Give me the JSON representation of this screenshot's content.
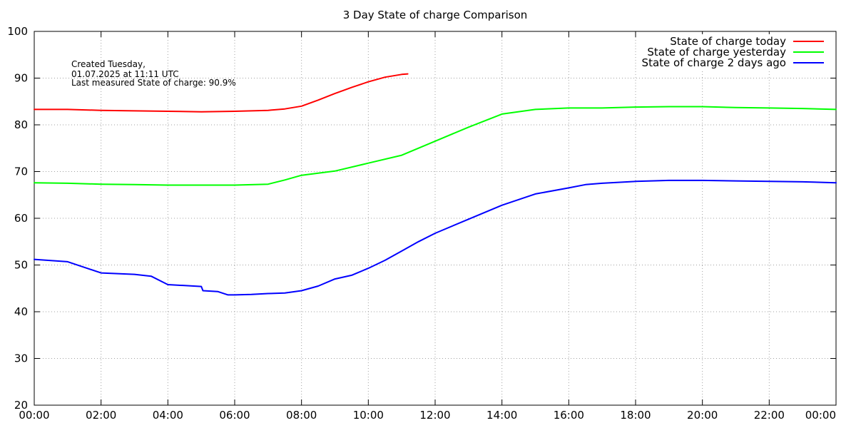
{
  "chart_data": {
    "type": "line",
    "title": "3 Day State of charge Comparison",
    "xlabel": "",
    "ylabel": "",
    "xlim": [
      0,
      24
    ],
    "ylim": [
      20,
      100
    ],
    "x_tick_values": [
      0,
      2,
      4,
      6,
      8,
      10,
      12,
      14,
      16,
      18,
      20,
      22,
      24
    ],
    "x_ticks": [
      "00:00",
      "02:00",
      "04:00",
      "06:00",
      "08:00",
      "10:00",
      "12:00",
      "14:00",
      "16:00",
      "18:00",
      "20:00",
      "22:00",
      "00:00"
    ],
    "y_ticks": [
      20,
      30,
      40,
      50,
      60,
      70,
      80,
      90,
      100
    ],
    "grid": true,
    "legend_position": "top-right",
    "annotation": {
      "line1": "Created Tuesday,",
      "line2": "01.07.2025 at 11:11 UTC",
      "line3": "Last measured State of charge: 90.9%"
    },
    "series": [
      {
        "name": "State of charge today",
        "color": "#ff0000",
        "points": [
          [
            0,
            83.3
          ],
          [
            1,
            83.3
          ],
          [
            2,
            83.1
          ],
          [
            3,
            83.0
          ],
          [
            4,
            82.9
          ],
          [
            5,
            82.8
          ],
          [
            6,
            82.9
          ],
          [
            7,
            83.1
          ],
          [
            7.5,
            83.4
          ],
          [
            8,
            84.0
          ],
          [
            8.5,
            85.3
          ],
          [
            9,
            86.7
          ],
          [
            9.5,
            88.0
          ],
          [
            10,
            89.2
          ],
          [
            10.5,
            90.2
          ],
          [
            11,
            90.8
          ],
          [
            11.18,
            90.9
          ]
        ]
      },
      {
        "name": "State of charge yesterday",
        "color": "#00ff00",
        "points": [
          [
            0,
            67.6
          ],
          [
            1,
            67.5
          ],
          [
            2,
            67.3
          ],
          [
            3,
            67.2
          ],
          [
            4,
            67.1
          ],
          [
            5,
            67.1
          ],
          [
            6,
            67.1
          ],
          [
            7,
            67.3
          ],
          [
            7.5,
            68.2
          ],
          [
            8,
            69.2
          ],
          [
            9,
            70.1
          ],
          [
            10,
            71.8
          ],
          [
            11,
            73.5
          ],
          [
            12,
            76.5
          ],
          [
            13,
            79.5
          ],
          [
            14,
            82.3
          ],
          [
            15,
            83.3
          ],
          [
            16,
            83.6
          ],
          [
            17,
            83.6
          ],
          [
            18,
            83.8
          ],
          [
            19,
            83.9
          ],
          [
            20,
            83.9
          ],
          [
            21,
            83.7
          ],
          [
            22,
            83.6
          ],
          [
            23,
            83.5
          ],
          [
            24,
            83.3
          ]
        ]
      },
      {
        "name": "State of charge 2 days ago",
        "color": "#0000ff",
        "points": [
          [
            0,
            51.2
          ],
          [
            1,
            50.7
          ],
          [
            1.5,
            49.5
          ],
          [
            2,
            48.3
          ],
          [
            3,
            48.0
          ],
          [
            3.5,
            47.6
          ],
          [
            4,
            45.8
          ],
          [
            4.5,
            45.6
          ],
          [
            5,
            45.4
          ],
          [
            5.05,
            44.5
          ],
          [
            5.5,
            44.3
          ],
          [
            5.8,
            43.6
          ],
          [
            6,
            43.6
          ],
          [
            6.5,
            43.7
          ],
          [
            7,
            43.9
          ],
          [
            7.5,
            44.0
          ],
          [
            8,
            44.5
          ],
          [
            8.5,
            45.5
          ],
          [
            9,
            47.0
          ],
          [
            9.5,
            47.8
          ],
          [
            10,
            49.3
          ],
          [
            10.5,
            51.0
          ],
          [
            11,
            53.0
          ],
          [
            11.5,
            55.0
          ],
          [
            12,
            56.8
          ],
          [
            13,
            59.8
          ],
          [
            14,
            62.8
          ],
          [
            15,
            65.2
          ],
          [
            16,
            66.5
          ],
          [
            16.5,
            67.2
          ],
          [
            17,
            67.5
          ],
          [
            18,
            67.9
          ],
          [
            19,
            68.1
          ],
          [
            20,
            68.1
          ],
          [
            21,
            68.0
          ],
          [
            22,
            67.9
          ],
          [
            23,
            67.8
          ],
          [
            24,
            67.6
          ]
        ]
      }
    ]
  }
}
